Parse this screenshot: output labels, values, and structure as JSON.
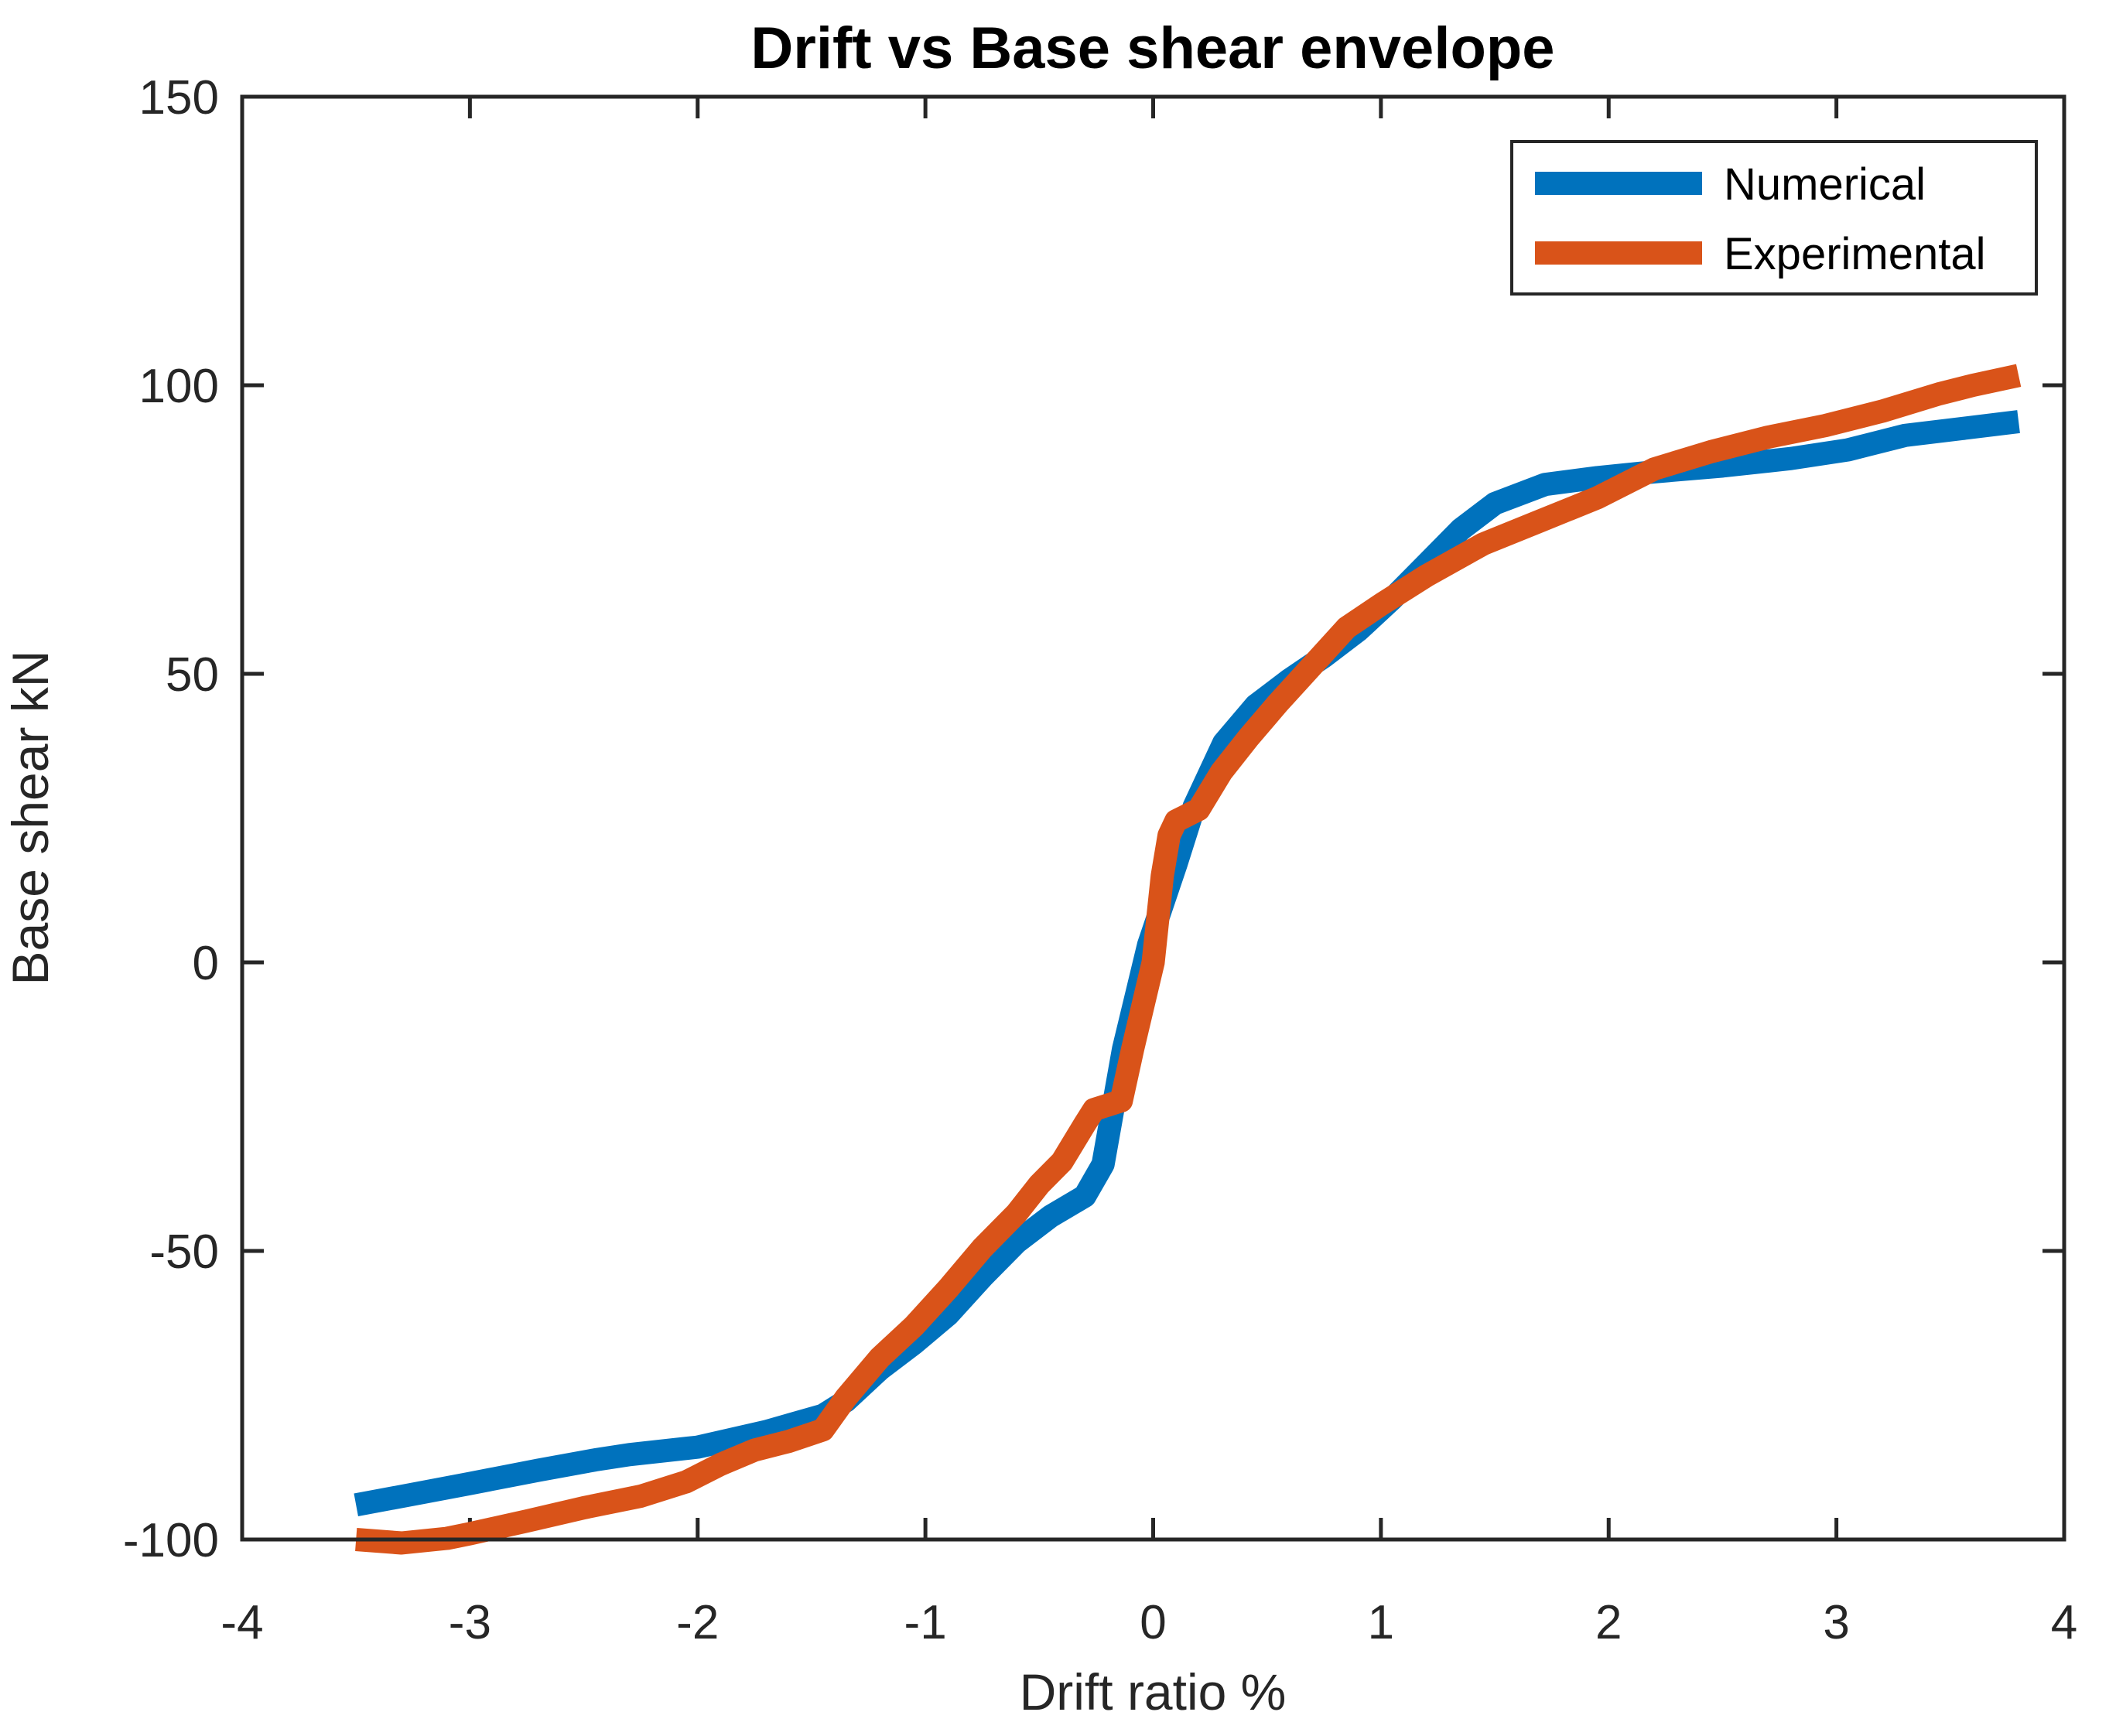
{
  "chart_data": {
    "type": "line",
    "title": "Drift vs Base shear envelope",
    "xlabel": "Drift ratio %",
    "ylabel": "Base shear kN",
    "xlim": [
      -4,
      4
    ],
    "ylim": [
      -100,
      150
    ],
    "xticks": [
      -4,
      -3,
      -2,
      -1,
      0,
      1,
      2,
      3,
      4
    ],
    "yticks": [
      150,
      100,
      50,
      0,
      -50,
      -100
    ],
    "grid": false,
    "legend_position": "top-right",
    "background_color": "#ffffff",
    "axis_color": "#262626",
    "series": [
      {
        "name": "Numerical",
        "color": "#0072BD",
        "line_width": 30,
        "points": [
          [
            -3.5,
            -94.0
          ],
          [
            -3.2,
            -91.8
          ],
          [
            -3.0,
            -90.3
          ],
          [
            -2.7,
            -88.0
          ],
          [
            -2.45,
            -86.2
          ],
          [
            -2.3,
            -85.3
          ],
          [
            -2.0,
            -84.0
          ],
          [
            -1.7,
            -81.3
          ],
          [
            -1.45,
            -78.5
          ],
          [
            -1.35,
            -76.0
          ],
          [
            -1.2,
            -70.5
          ],
          [
            -1.05,
            -66.0
          ],
          [
            -0.9,
            -61.0
          ],
          [
            -0.75,
            -54.5
          ],
          [
            -0.6,
            -48.5
          ],
          [
            -0.45,
            -44.0
          ],
          [
            -0.3,
            -40.5
          ],
          [
            -0.22,
            -35.0
          ],
          [
            -0.13,
            -15.0
          ],
          [
            -0.02,
            3.0
          ],
          [
            0.1,
            17.0
          ],
          [
            0.18,
            27.0
          ],
          [
            0.31,
            38.0
          ],
          [
            0.45,
            44.5
          ],
          [
            0.6,
            49.0
          ],
          [
            0.75,
            53.0
          ],
          [
            0.9,
            57.5
          ],
          [
            1.05,
            63.0
          ],
          [
            1.2,
            69.0
          ],
          [
            1.35,
            75.0
          ],
          [
            1.5,
            79.5
          ],
          [
            1.72,
            82.8
          ],
          [
            1.95,
            84.0
          ],
          [
            2.2,
            85.0
          ],
          [
            2.5,
            86.0
          ],
          [
            2.8,
            87.3
          ],
          [
            3.05,
            88.8
          ],
          [
            3.3,
            91.3
          ],
          [
            3.55,
            92.5
          ],
          [
            3.8,
            93.7
          ]
        ]
      },
      {
        "name": "Experimental",
        "color": "#D95319",
        "line_width": 30,
        "points": [
          [
            -3.5,
            -100.0
          ],
          [
            -3.3,
            -100.6
          ],
          [
            -3.1,
            -99.8
          ],
          [
            -3.0,
            -99.0
          ],
          [
            -2.75,
            -96.8
          ],
          [
            -2.5,
            -94.5
          ],
          [
            -2.25,
            -92.5
          ],
          [
            -2.05,
            -90.0
          ],
          [
            -1.9,
            -87.0
          ],
          [
            -1.75,
            -84.5
          ],
          [
            -1.6,
            -83.0
          ],
          [
            -1.45,
            -81.0
          ],
          [
            -1.35,
            -75.5
          ],
          [
            -1.2,
            -68.5
          ],
          [
            -1.05,
            -63.0
          ],
          [
            -0.9,
            -56.5
          ],
          [
            -0.75,
            -49.5
          ],
          [
            -0.6,
            -43.5
          ],
          [
            -0.5,
            -38.5
          ],
          [
            -0.4,
            -34.5
          ],
          [
            -0.3,
            -28.0
          ],
          [
            -0.26,
            -25.5
          ],
          [
            -0.14,
            -24.0
          ],
          [
            -0.09,
            -15.0
          ],
          [
            0.0,
            0.0
          ],
          [
            0.04,
            15.0
          ],
          [
            0.07,
            22.0
          ],
          [
            0.1,
            24.5
          ],
          [
            0.2,
            26.5
          ],
          [
            0.3,
            33.0
          ],
          [
            0.42,
            39.0
          ],
          [
            0.55,
            45.0
          ],
          [
            0.7,
            51.5
          ],
          [
            0.85,
            58.0
          ],
          [
            1.0,
            62.0
          ],
          [
            1.2,
            67.0
          ],
          [
            1.45,
            72.5
          ],
          [
            1.7,
            76.5
          ],
          [
            1.95,
            80.5
          ],
          [
            2.2,
            85.5
          ],
          [
            2.45,
            88.5
          ],
          [
            2.7,
            91.0
          ],
          [
            2.95,
            93.0
          ],
          [
            3.2,
            95.5
          ],
          [
            3.45,
            98.5
          ],
          [
            3.6,
            100.0
          ],
          [
            3.8,
            101.7
          ]
        ]
      }
    ]
  }
}
